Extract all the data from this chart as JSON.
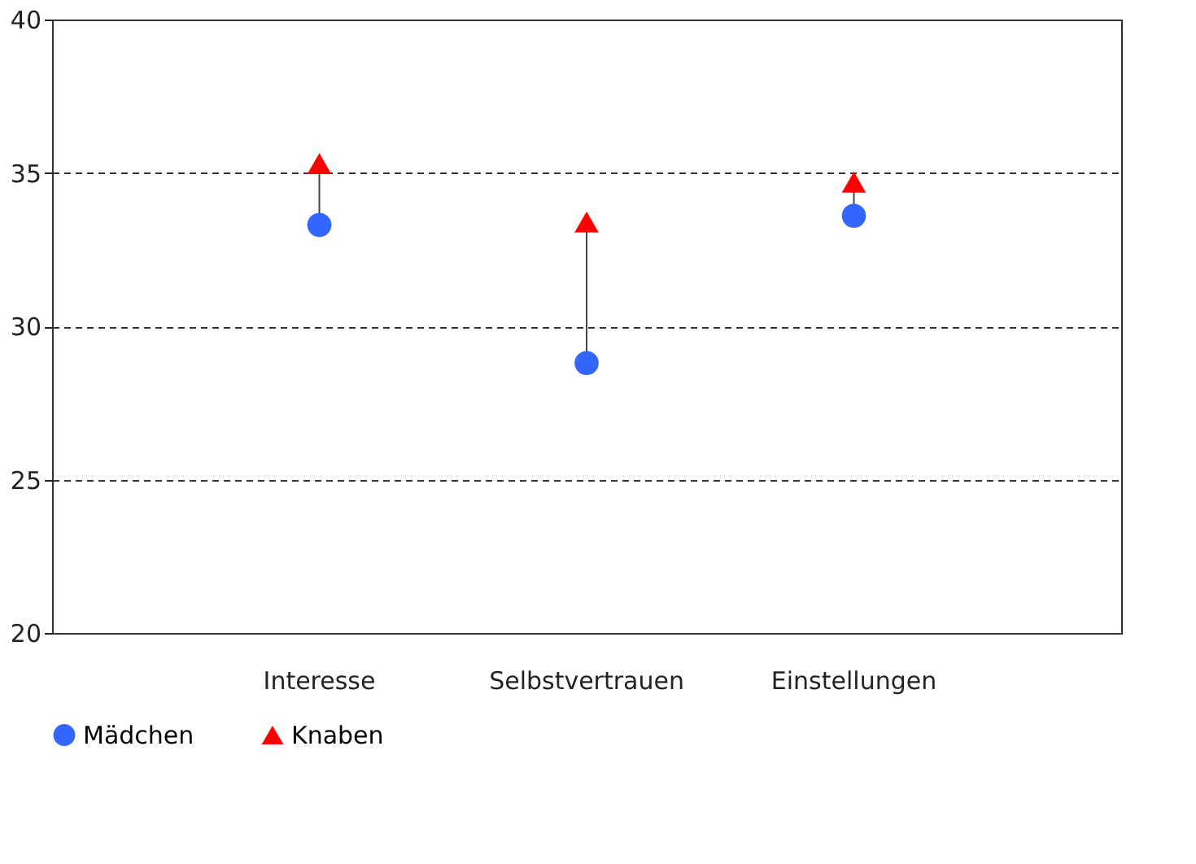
{
  "chart_data": {
    "type": "scatter",
    "categories": [
      "Interesse",
      "Selbstvertrauen",
      "Einstellungen"
    ],
    "series": [
      {
        "name": "Mädchen",
        "color": "#3366ff",
        "marker": "circle",
        "values": [
          33.3,
          28.8,
          33.6
        ]
      },
      {
        "name": "Knaben",
        "color": "#ff0000",
        "marker": "triangle",
        "values": [
          35.3,
          33.4,
          34.7
        ]
      }
    ],
    "ylim": [
      20,
      40
    ],
    "yticks": [
      20,
      25,
      30,
      35,
      40
    ],
    "grid": "y",
    "line_style": "dashed",
    "legend": "bottom"
  }
}
